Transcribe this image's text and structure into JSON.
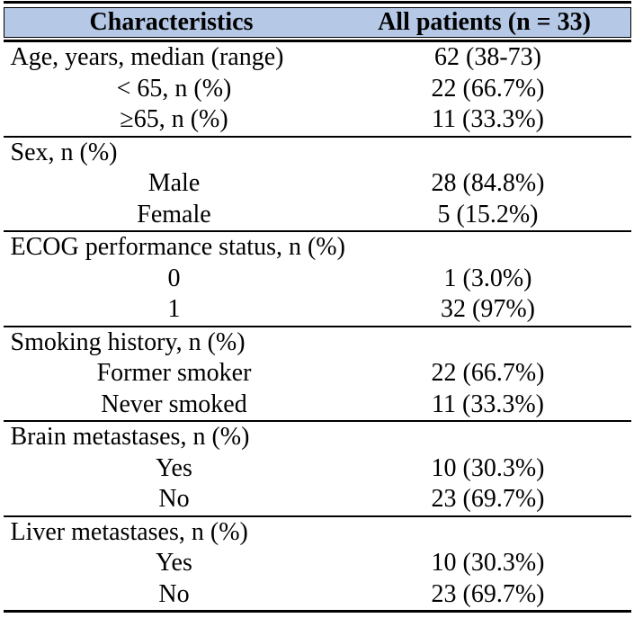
{
  "table": {
    "columns": [
      "Characteristics",
      "All patients (n = 33)"
    ],
    "sections": [
      {
        "name": "age",
        "header": {
          "label": "Age, years, median (range)",
          "value": "62 (38-73)"
        },
        "rows": [
          {
            "label": "< 65, n (%)",
            "value": "22 (66.7%)"
          },
          {
            "label": "≥65, n (%)",
            "value": "11 (33.3%)"
          }
        ]
      },
      {
        "name": "sex",
        "header": {
          "label": "Sex, n (%)",
          "value": ""
        },
        "rows": [
          {
            "label": "Male",
            "value": "28 (84.8%)"
          },
          {
            "label": "Female",
            "value": "5 (15.2%)"
          }
        ]
      },
      {
        "name": "ecog-performance-status",
        "header": {
          "label": "ECOG performance status, n (%)",
          "value": ""
        },
        "rows": [
          {
            "label": "0",
            "value": "1 (3.0%)"
          },
          {
            "label": "1",
            "value": "32 (97%)"
          }
        ]
      },
      {
        "name": "smoking-history",
        "header": {
          "label": "Smoking history, n (%)",
          "value": ""
        },
        "rows": [
          {
            "label": "Former smoker",
            "value": "22 (66.7%)"
          },
          {
            "label": "Never smoked",
            "value": "11 (33.3%)"
          }
        ]
      },
      {
        "name": "brain-metastases",
        "header": {
          "label": "Brain metastases, n (%)",
          "value": ""
        },
        "rows": [
          {
            "label": "Yes",
            "value": "10 (30.3%)"
          },
          {
            "label": "No",
            "value": "23 (69.7%)"
          }
        ]
      },
      {
        "name": "liver-metastases",
        "header": {
          "label": "Liver metastases, n (%)",
          "value": ""
        },
        "rows": [
          {
            "label": "Yes",
            "value": "10 (30.3%)"
          },
          {
            "label": "No",
            "value": "23 (69.7%)"
          }
        ]
      }
    ],
    "colors": {
      "header_bg": "#b5c8e6",
      "border": "#000000",
      "text": "#000000"
    }
  }
}
